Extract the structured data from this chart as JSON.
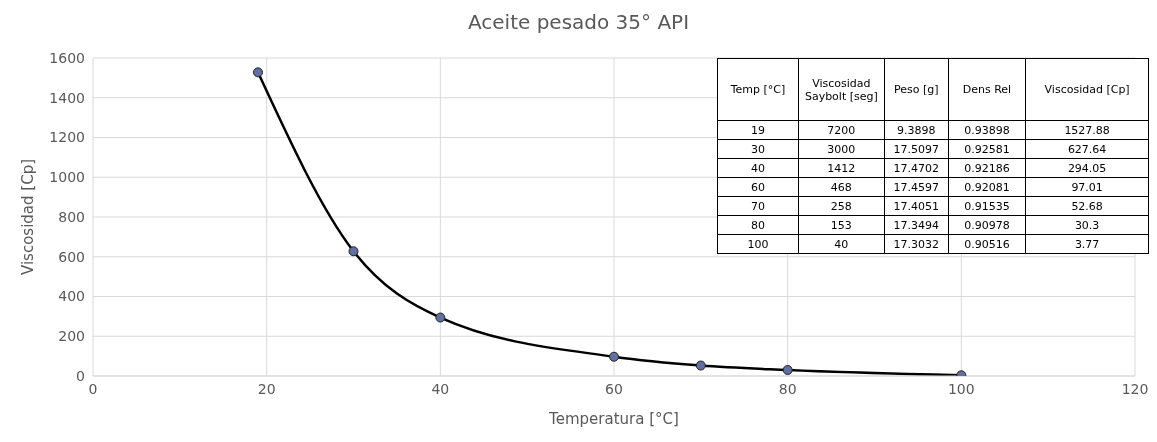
{
  "chart_data": [
    {
      "type": "line",
      "title": "Aceite pesado 35° API",
      "xlabel": "Temperatura [°C]",
      "ylabel": "Viscosidad [Cp]",
      "x": [
        19,
        30,
        40,
        60,
        70,
        80,
        100
      ],
      "series": [
        {
          "color": "#000000",
          "values": [
            1527.88,
            627.64,
            294.05,
            97.01,
            52.68,
            30.3,
            3.77
          ]
        }
      ],
      "xlim": [
        0,
        120
      ],
      "xticks": [
        0,
        20,
        40,
        60,
        80,
        100,
        120
      ],
      "ylim": [
        0,
        1600
      ],
      "yticks": [
        0,
        200,
        400,
        600,
        800,
        1000,
        1200,
        1400,
        1600
      ],
      "grid": true,
      "marker": "circle",
      "legend": false
    },
    {
      "type": "other",
      "annotations": [
        "Temp [°C]",
        "Viscosidad Saybolt [seg]",
        "Peso [g]",
        "Dens Rel",
        "Viscosidad  [Cp]",
        "19",
        "7200",
        "9.3898",
        "0.93898",
        "1527.88",
        "30",
        "3000",
        "17.5097",
        "0.92581",
        "627.64",
        "40",
        "1412",
        "17.4702",
        "0.92186",
        "294.05",
        "60",
        "468",
        "17.4597",
        "0.92081",
        "97.01",
        "70",
        "258",
        "17.4051",
        "0.91535",
        "52.68",
        "80",
        "153",
        "17.3494",
        "0.90978",
        "30.3",
        "100",
        "40",
        "17.3032",
        "0.90516",
        "3.77"
      ]
    }
  ]
}
